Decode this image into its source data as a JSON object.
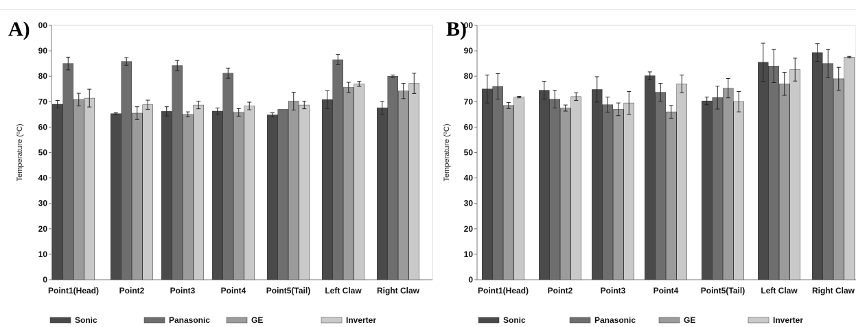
{
  "figure": {
    "series_colors": [
      "#4a4a4a",
      "#6e6e6e",
      "#9b9b9b",
      "#c9c9c9"
    ]
  },
  "chart_data": [
    {
      "panel_label": "A)",
      "type": "bar",
      "title": "",
      "ylabel": "Temperature (ºC)",
      "xlabel": "",
      "ylim": [
        0,
        100
      ],
      "yticks": [
        0,
        10,
        20,
        30,
        40,
        50,
        60,
        70,
        80,
        90
      ],
      "top_tick_label": "00",
      "grid": false,
      "legend": "bottom",
      "categories": [
        "Point1(Head)",
        "Point2",
        "Point3",
        "Point4",
        "Point5(Tail)",
        "Left Claw",
        "Right Claw"
      ],
      "series": [
        {
          "name": "Sonic",
          "values": [
            69,
            65.3,
            66.2,
            66.3,
            64.8,
            70.8,
            67.6
          ],
          "errors": [
            1.5,
            0.3,
            1.8,
            1.2,
            0.8,
            3.5,
            2.5
          ]
        },
        {
          "name": "Panasonic",
          "values": [
            85,
            85.8,
            84.2,
            81.2,
            67,
            86.5,
            80
          ],
          "errors": [
            2.5,
            1.5,
            2,
            2,
            0,
            2,
            0.5
          ]
        },
        {
          "name": "GE",
          "values": [
            70.8,
            65.5,
            65,
            65.8,
            70.2,
            75.6,
            74.2
          ],
          "errors": [
            2.5,
            2.5,
            1,
            1.5,
            3.5,
            2,
            3
          ]
        },
        {
          "name": "Inverter",
          "values": [
            71.4,
            68.8,
            68.7,
            68.3,
            68.7,
            77,
            77.2
          ],
          "errors": [
            3.5,
            1.8,
            1.5,
            1.5,
            1.5,
            1,
            4
          ]
        }
      ]
    },
    {
      "panel_label": "B)",
      "type": "bar",
      "title": "",
      "ylabel": "Temperature (ºC)",
      "xlabel": "",
      "ylim": [
        0,
        100
      ],
      "yticks": [
        0,
        10,
        20,
        30,
        40,
        50,
        60,
        70,
        80,
        90
      ],
      "top_tick_label": "00",
      "grid": false,
      "legend": "bottom",
      "categories": [
        "Point1(Head)",
        "Point2",
        "Point3",
        "Point4",
        "Point5(Tail)",
        "Left Claw",
        "Right Claw"
      ],
      "series": [
        {
          "name": "Sonic",
          "values": [
            75,
            74.5,
            74.8,
            80.2,
            70.3,
            85.5,
            89.3
          ],
          "errors": [
            5.5,
            3.5,
            5,
            1.5,
            1.5,
            7.5,
            3.5
          ]
        },
        {
          "name": "Panasonic",
          "values": [
            76,
            71,
            68.8,
            73.7,
            71.6,
            84,
            85
          ],
          "errors": [
            5,
            3.5,
            3,
            3.5,
            4.5,
            6.5,
            5.5
          ]
        },
        {
          "name": "GE",
          "values": [
            68.5,
            67.5,
            67,
            66,
            75.3,
            77,
            79
          ],
          "errors": [
            1.2,
            1.2,
            2.5,
            2.5,
            3.8,
            4.5,
            4.5
          ]
        },
        {
          "name": "Inverter",
          "values": [
            71.8,
            72,
            69.5,
            77,
            70,
            82.6,
            87.5
          ],
          "errors": [
            0.3,
            1.5,
            4.5,
            3.5,
            4,
            4.5,
            0.3
          ]
        }
      ]
    }
  ]
}
